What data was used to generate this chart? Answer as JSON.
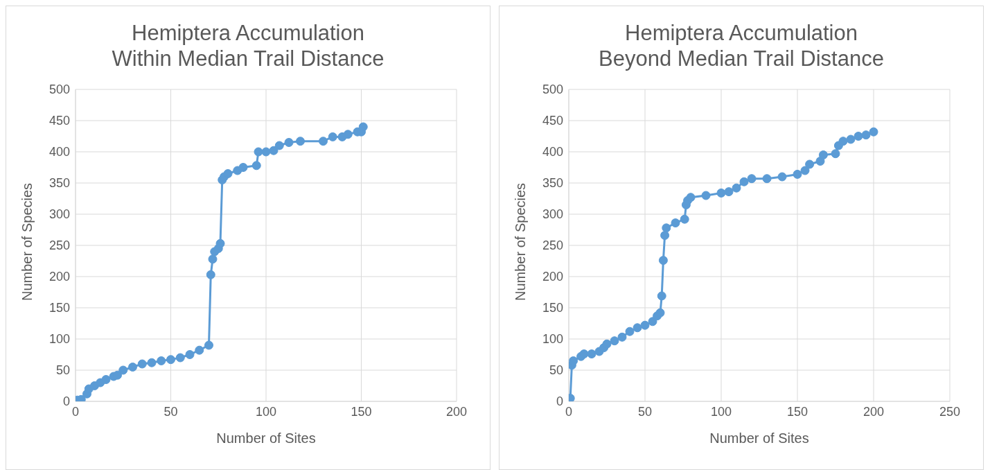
{
  "chart_data": [
    {
      "type": "line",
      "title": "Hemiptera Accumulation\nWithin Median Trail Distance",
      "xlabel": "Number of Sites",
      "ylabel": "Number of Species",
      "xlim": [
        0,
        200
      ],
      "xticks": [
        0,
        50,
        100,
        150,
        200
      ],
      "ylim": [
        0,
        500
      ],
      "yticks": [
        0,
        50,
        100,
        150,
        200,
        250,
        300,
        350,
        400,
        450,
        500
      ],
      "grid": true,
      "marker": "circle",
      "line_style": "solid",
      "series": [
        {
          "color": "#5b9bd5",
          "x": [
            1,
            3,
            6,
            7,
            10,
            13,
            16,
            20,
            22,
            25,
            30,
            35,
            40,
            45,
            50,
            55,
            60,
            65,
            70,
            71,
            72,
            73,
            75,
            76,
            77,
            78,
            80,
            85,
            88,
            95,
            96,
            100,
            104,
            107,
            112,
            118,
            130,
            135,
            140,
            143,
            148,
            150,
            151
          ],
          "values": [
            2,
            3,
            12,
            20,
            25,
            30,
            35,
            40,
            42,
            50,
            55,
            60,
            62,
            65,
            67,
            70,
            75,
            82,
            90,
            203,
            228,
            240,
            245,
            253,
            355,
            360,
            365,
            370,
            375,
            378,
            400,
            400,
            402,
            410,
            415,
            417,
            417,
            424,
            424,
            428,
            432,
            432,
            440
          ]
        }
      ]
    },
    {
      "type": "line",
      "title": "Hemiptera Accumulation\nBeyond Median Trail Distance",
      "xlabel": "Number of Sites",
      "ylabel": "Number of Species",
      "xlim": [
        0,
        250
      ],
      "xticks": [
        0,
        50,
        100,
        150,
        200,
        250
      ],
      "ylim": [
        0,
        500
      ],
      "yticks": [
        0,
        50,
        100,
        150,
        200,
        250,
        300,
        350,
        400,
        450,
        500
      ],
      "grid": true,
      "marker": "circle",
      "line_style": "solid",
      "series": [
        {
          "color": "#5b9bd5",
          "x": [
            1,
            2,
            3,
            8,
            10,
            15,
            20,
            23,
            25,
            30,
            35,
            40,
            45,
            50,
            55,
            58,
            60,
            61,
            62,
            63,
            64,
            70,
            76,
            77,
            78,
            80,
            90,
            100,
            105,
            110,
            115,
            120,
            130,
            140,
            150,
            155,
            158,
            165,
            167,
            175,
            177,
            180,
            185,
            190,
            195,
            200
          ],
          "values": [
            5,
            58,
            65,
            72,
            76,
            76,
            80,
            86,
            92,
            97,
            103,
            112,
            118,
            122,
            128,
            137,
            142,
            169,
            226,
            266,
            278,
            286,
            292,
            315,
            322,
            327,
            330,
            334,
            336,
            342,
            352,
            357,
            357,
            360,
            364,
            370,
            380,
            385,
            395,
            397,
            410,
            417,
            420,
            425,
            427,
            432
          ]
        }
      ]
    }
  ]
}
